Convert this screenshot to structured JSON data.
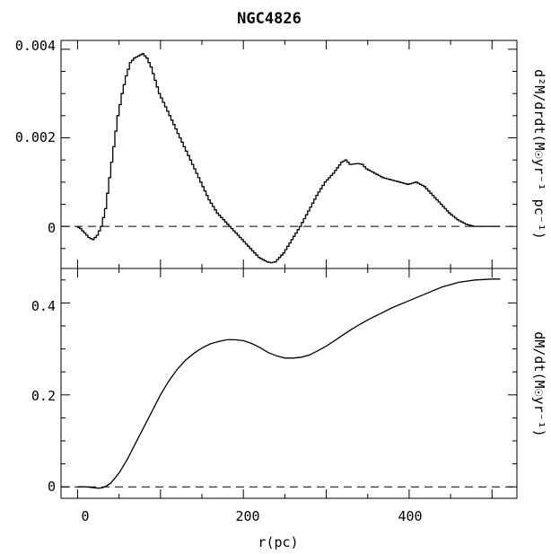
{
  "chart_data": [
    {
      "type": "line",
      "title": "NGC4826",
      "xlabel": "",
      "ylabel": "d²M/drdt(M☉yr⁻¹ pc⁻¹)",
      "xlim": [
        -20,
        530
      ],
      "ylim": [
        -0.00095,
        0.0042
      ],
      "yticks_major": [
        0,
        0.002,
        0.004
      ],
      "ytick_labels": [
        "0",
        "0.002",
        "0.004"
      ],
      "yticks_minor_step": 0.0005,
      "reference_line": {
        "y": 0,
        "style": "dashed"
      },
      "series": [
        {
          "name": "",
          "style": "step",
          "x": [
            0,
            5,
            10,
            15,
            20,
            25,
            30,
            35,
            40,
            45,
            50,
            55,
            60,
            65,
            70,
            75,
            80,
            85,
            90,
            95,
            100,
            110,
            120,
            130,
            140,
            150,
            160,
            170,
            180,
            190,
            200,
            210,
            220,
            230,
            235,
            240,
            245,
            250,
            260,
            270,
            280,
            290,
            300,
            310,
            320,
            325,
            330,
            340,
            345,
            350,
            360,
            370,
            380,
            390,
            400,
            410,
            420,
            430,
            440,
            450,
            460,
            470,
            480,
            490,
            500,
            510
          ],
          "y": [
            0.0,
            -5e-05,
            -0.00015,
            -0.00025,
            -0.0003,
            -0.0002,
            0.0,
            0.0004,
            0.0011,
            0.0018,
            0.0025,
            0.003,
            0.0034,
            0.0037,
            0.0038,
            0.00385,
            0.0039,
            0.0038,
            0.0036,
            0.0033,
            0.003,
            0.0026,
            0.0022,
            0.0018,
            0.0014,
            0.001,
            0.0006,
            0.0003,
            0.0001,
            -0.0001,
            -0.0003,
            -0.0005,
            -0.0007,
            -0.0008,
            -0.00082,
            -0.0008,
            -0.0007,
            -0.0006,
            -0.0003,
            0.0,
            0.00035,
            0.0007,
            0.001,
            0.0012,
            0.00145,
            0.0015,
            0.0014,
            0.00142,
            0.0014,
            0.0013,
            0.0012,
            0.0011,
            0.00105,
            0.001,
            0.00095,
            0.001,
            0.0009,
            0.0007,
            0.0005,
            0.0003,
            0.00015,
            5e-05,
            0.0,
            0.0,
            0.0,
            0.0
          ]
        }
      ]
    },
    {
      "type": "line",
      "title": "",
      "xlabel": "r(pc)",
      "ylabel": "dM/dt(M☉yr⁻¹)",
      "xlim": [
        -20,
        530
      ],
      "ylim": [
        -0.025,
        0.475
      ],
      "xticks_major": [
        0,
        200,
        400
      ],
      "xtick_labels": [
        "0",
        "200",
        "400"
      ],
      "xticks_minor_step": 50,
      "yticks_major": [
        0,
        0.2,
        0.4
      ],
      "ytick_labels": [
        "0",
        "0.2",
        "0.4"
      ],
      "yticks_minor_step": 0.05,
      "reference_line": {
        "y": 0,
        "style": "dashed"
      },
      "series": [
        {
          "name": "",
          "style": "line",
          "x": [
            0,
            10,
            20,
            25,
            30,
            35,
            40,
            50,
            60,
            70,
            80,
            90,
            100,
            110,
            120,
            130,
            140,
            150,
            160,
            170,
            180,
            190,
            200,
            210,
            220,
            230,
            240,
            250,
            260,
            270,
            280,
            290,
            300,
            310,
            320,
            330,
            340,
            350,
            360,
            380,
            400,
            420,
            440,
            460,
            480,
            500,
            510
          ],
          "y": [
            0.0,
            0.0,
            -0.002,
            -0.003,
            -0.002,
            0.002,
            0.008,
            0.03,
            0.06,
            0.095,
            0.13,
            0.165,
            0.2,
            0.23,
            0.255,
            0.275,
            0.29,
            0.302,
            0.311,
            0.316,
            0.32,
            0.32,
            0.318,
            0.312,
            0.303,
            0.292,
            0.285,
            0.28,
            0.28,
            0.282,
            0.287,
            0.296,
            0.306,
            0.318,
            0.33,
            0.342,
            0.353,
            0.363,
            0.372,
            0.39,
            0.405,
            0.42,
            0.435,
            0.445,
            0.45,
            0.452,
            0.452
          ]
        }
      ]
    }
  ]
}
